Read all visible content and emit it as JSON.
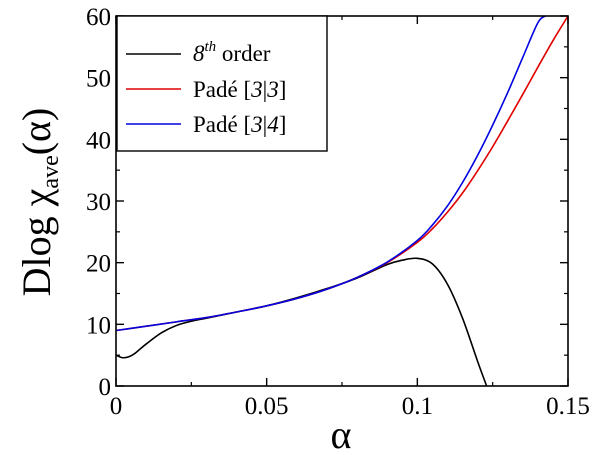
{
  "chart_data": {
    "type": "line",
    "ylabel": {
      "prefix": "Dlog ",
      "chi": "χ",
      "sub": "ave",
      "arg": "(α)"
    },
    "xlabel": "α",
    "xlim": [
      0,
      0.15
    ],
    "ylim": [
      0,
      60
    ],
    "x_ticks": [
      0,
      0.05,
      0.1,
      0.15
    ],
    "x_tick_labels": [
      "0",
      "0.05",
      "0.1",
      "0.15"
    ],
    "y_ticks": [
      0,
      10,
      20,
      30,
      40,
      50,
      60
    ],
    "y_tick_labels": [
      "0",
      "10",
      "20",
      "30",
      "40",
      "50",
      "60"
    ],
    "grid": false,
    "legend_position": "top-left",
    "legend": [
      {
        "base": "8",
        "sup": "th",
        "rest": " order",
        "color": "#000000"
      },
      {
        "base": "Padé [",
        "it1": "3",
        "sep": "|",
        "it2": "3",
        "close": "]",
        "color": "#e00000"
      },
      {
        "base": "Padé [",
        "it1": "3",
        "sep": "|",
        "it2": "4",
        "close": "]",
        "color": "#0000e0"
      }
    ],
    "series": [
      {
        "color": "#000000",
        "x": [
          0,
          0.002,
          0.004,
          0.006,
          0.008,
          0.01,
          0.015,
          0.02,
          0.025,
          0.03,
          0.04,
          0.05,
          0.06,
          0.07,
          0.08,
          0.09,
          0.095,
          0.1,
          0.105,
          0.11,
          0.115,
          0.12,
          0.123
        ],
        "y": [
          5.0,
          4.6,
          4.7,
          5.2,
          6.0,
          6.8,
          8.6,
          9.8,
          10.5,
          11.0,
          12.0,
          13.0,
          14.3,
          15.8,
          17.5,
          19.7,
          20.4,
          20.7,
          19.8,
          16.5,
          11.0,
          4.0,
          0
        ]
      },
      {
        "color": "#e00000",
        "x": [
          0,
          0.01,
          0.02,
          0.03,
          0.04,
          0.05,
          0.06,
          0.07,
          0.08,
          0.09,
          0.1,
          0.105,
          0.11,
          0.115,
          0.12,
          0.125,
          0.13,
          0.135,
          0.14,
          0.145,
          0.15
        ],
        "y": [
          9.0,
          9.7,
          10.4,
          11.1,
          12.0,
          13.0,
          14.2,
          15.7,
          17.6,
          20.0,
          23.3,
          25.5,
          28.2,
          31.3,
          34.9,
          38.8,
          43.0,
          47.3,
          51.7,
          56.0,
          60.0
        ]
      },
      {
        "color": "#0000e0",
        "x": [
          0,
          0.01,
          0.02,
          0.03,
          0.04,
          0.05,
          0.06,
          0.07,
          0.08,
          0.09,
          0.1,
          0.105,
          0.11,
          0.115,
          0.12,
          0.125,
          0.13,
          0.135,
          0.14,
          0.1425
        ],
        "y": [
          9.0,
          9.7,
          10.4,
          11.1,
          12.0,
          13.0,
          14.2,
          15.7,
          17.6,
          20.1,
          23.6,
          26.1,
          29.2,
          33.0,
          37.4,
          42.3,
          47.6,
          53.3,
          58.9,
          60.0
        ]
      }
    ]
  }
}
